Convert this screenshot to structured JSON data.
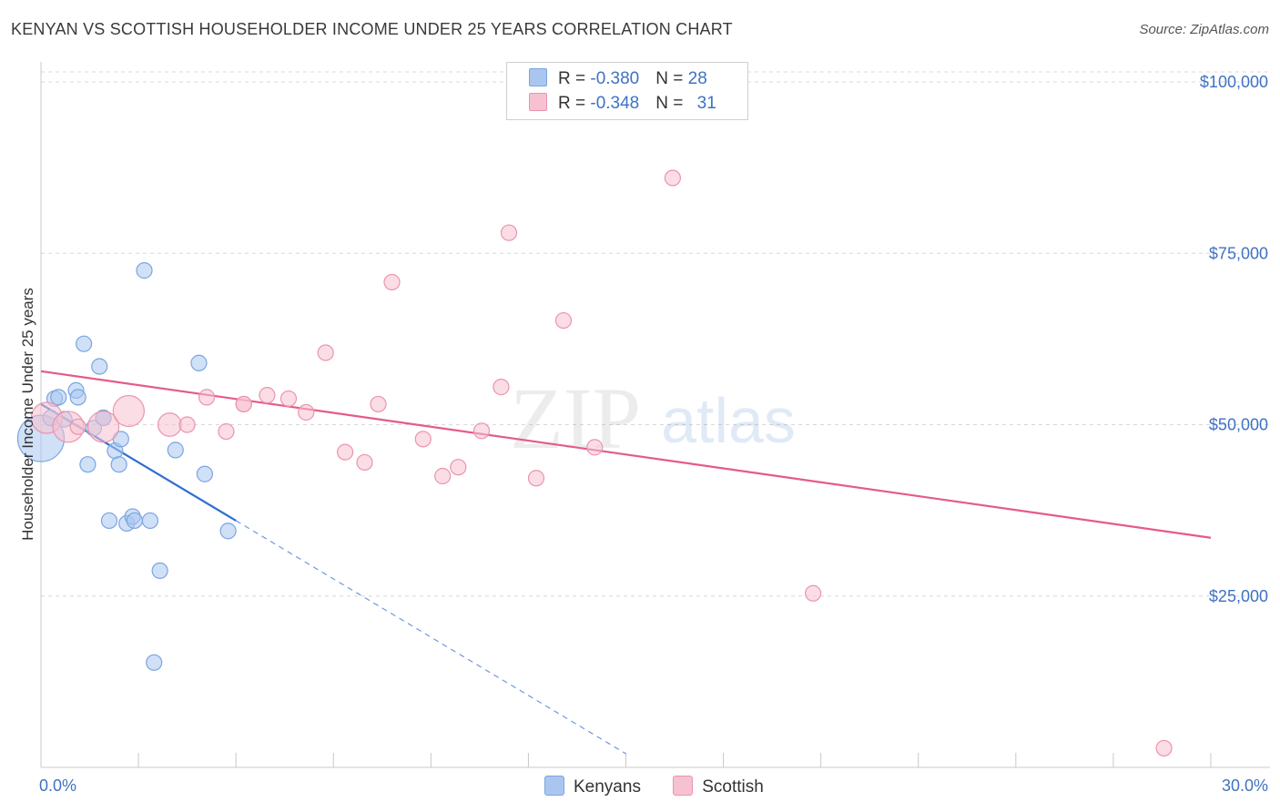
{
  "header": {
    "title": "KENYAN VS SCOTTISH HOUSEHOLDER INCOME UNDER 25 YEARS CORRELATION CHART",
    "source": "Source: ZipAtlas.com"
  },
  "legend": {
    "rows": [
      {
        "r_label": "R = ",
        "r_value": "-0.380",
        "n_label": "N = ",
        "n_value": "28",
        "color": "#aac6f0",
        "border": "#7aa5e0"
      },
      {
        "r_label": "R = ",
        "r_value": "-0.348",
        "n_label": "N = ",
        "n_value": "31",
        "color": "#f6c1d0",
        "border": "#eb94ad"
      }
    ]
  },
  "bottom_legend": {
    "items": [
      {
        "label": "Kenyans",
        "color": "#aac6f0",
        "border": "#7aa5e0"
      },
      {
        "label": "Scottish",
        "color": "#f6c1d0",
        "border": "#eb94ad"
      }
    ]
  },
  "watermark": {
    "zip": "ZIP",
    "atlas": "atlas"
  },
  "chart_data": {
    "type": "scatter",
    "title": "KENYAN VS SCOTTISH HOUSEHOLDER INCOME UNDER 25 YEARS CORRELATION CHART",
    "xlabel": "",
    "ylabel": "Householder Income Under 25 years",
    "xlim": [
      0,
      30
    ],
    "ylim": [
      0,
      102000
    ],
    "x_tick_labels": [
      "0.0%",
      "30.0%"
    ],
    "y_ticks": [
      25000,
      50000,
      75000,
      100000
    ],
    "y_tick_labels": [
      "$25,000",
      "$50,000",
      "$75,000",
      "$100,000"
    ],
    "grid": true,
    "series": [
      {
        "name": "Kenyans",
        "color": "#aac6f0",
        "stroke": "#7aa5e0",
        "line_color": "#2f6fd0",
        "trend": {
          "x0": 0,
          "y0": 53000,
          "x1": 5.0,
          "y1": 36000,
          "dash_to_x": 15.0
        },
        "points": [
          {
            "x": 0.0,
            "y": 48000,
            "s": 3
          },
          {
            "x": 0.25,
            "y": 51000,
            "s": 1
          },
          {
            "x": 0.35,
            "y": 53800,
            "s": 1
          },
          {
            "x": 0.45,
            "y": 54000,
            "s": 1
          },
          {
            "x": 0.6,
            "y": 50800,
            "s": 1
          },
          {
            "x": 0.9,
            "y": 55000,
            "s": 1
          },
          {
            "x": 0.95,
            "y": 54000,
            "s": 1
          },
          {
            "x": 1.1,
            "y": 61800,
            "s": 1
          },
          {
            "x": 1.2,
            "y": 44200,
            "s": 1
          },
          {
            "x": 1.35,
            "y": 49500,
            "s": 1
          },
          {
            "x": 1.5,
            "y": 58500,
            "s": 1
          },
          {
            "x": 1.6,
            "y": 51000,
            "s": 1
          },
          {
            "x": 1.75,
            "y": 36000,
            "s": 1
          },
          {
            "x": 1.9,
            "y": 46200,
            "s": 1
          },
          {
            "x": 2.0,
            "y": 44200,
            "s": 1
          },
          {
            "x": 2.05,
            "y": 47900,
            "s": 1
          },
          {
            "x": 2.2,
            "y": 35600,
            "s": 1
          },
          {
            "x": 2.35,
            "y": 36600,
            "s": 1
          },
          {
            "x": 2.4,
            "y": 36000,
            "s": 1
          },
          {
            "x": 2.65,
            "y": 72500,
            "s": 1
          },
          {
            "x": 2.8,
            "y": 36000,
            "s": 1
          },
          {
            "x": 2.9,
            "y": 15300,
            "s": 1
          },
          {
            "x": 3.05,
            "y": 28700,
            "s": 1
          },
          {
            "x": 3.45,
            "y": 46300,
            "s": 1
          },
          {
            "x": 4.05,
            "y": 59000,
            "s": 1
          },
          {
            "x": 4.2,
            "y": 42800,
            "s": 1
          },
          {
            "x": 4.8,
            "y": 34500,
            "s": 1
          },
          {
            "x": 1.6,
            "y": 51000,
            "s": 1
          }
        ]
      },
      {
        "name": "Scottish",
        "color": "#f6c1d0",
        "stroke": "#eb94ad",
        "line_color": "#e55a8a",
        "trend": {
          "x0": 0,
          "y0": 57800,
          "x1": 30,
          "y1": 33500
        },
        "points": [
          {
            "x": 0.15,
            "y": 51000,
            "s": 2
          },
          {
            "x": 0.7,
            "y": 49700,
            "s": 2
          },
          {
            "x": 1.6,
            "y": 49700,
            "s": 2
          },
          {
            "x": 2.25,
            "y": 52000,
            "s": 2
          },
          {
            "x": 3.3,
            "y": 50000,
            "s": 1.5
          },
          {
            "x": 3.75,
            "y": 50000,
            "s": 1
          },
          {
            "x": 4.25,
            "y": 54000,
            "s": 1
          },
          {
            "x": 4.75,
            "y": 49000,
            "s": 1
          },
          {
            "x": 5.2,
            "y": 53000,
            "s": 1
          },
          {
            "x": 5.8,
            "y": 54300,
            "s": 1
          },
          {
            "x": 6.35,
            "y": 53800,
            "s": 1
          },
          {
            "x": 6.8,
            "y": 51800,
            "s": 1
          },
          {
            "x": 7.3,
            "y": 60500,
            "s": 1
          },
          {
            "x": 7.8,
            "y": 46000,
            "s": 1
          },
          {
            "x": 8.3,
            "y": 44500,
            "s": 1
          },
          {
            "x": 8.65,
            "y": 53000,
            "s": 1
          },
          {
            "x": 9.0,
            "y": 70800,
            "s": 1
          },
          {
            "x": 9.8,
            "y": 47900,
            "s": 1
          },
          {
            "x": 10.3,
            "y": 42500,
            "s": 1
          },
          {
            "x": 10.7,
            "y": 43800,
            "s": 1
          },
          {
            "x": 11.3,
            "y": 49100,
            "s": 1
          },
          {
            "x": 11.8,
            "y": 55500,
            "s": 1
          },
          {
            "x": 12.0,
            "y": 78000,
            "s": 1
          },
          {
            "x": 12.7,
            "y": 42200,
            "s": 1
          },
          {
            "x": 13.4,
            "y": 65200,
            "s": 1
          },
          {
            "x": 14.2,
            "y": 46700,
            "s": 1
          },
          {
            "x": 16.2,
            "y": 86000,
            "s": 1
          },
          {
            "x": 19.8,
            "y": 25400,
            "s": 1
          },
          {
            "x": 28.8,
            "y": 2800,
            "s": 1
          },
          {
            "x": 0.95,
            "y": 49700,
            "s": 1
          },
          {
            "x": 5.2,
            "y": 53000,
            "s": 1
          }
        ]
      }
    ]
  }
}
